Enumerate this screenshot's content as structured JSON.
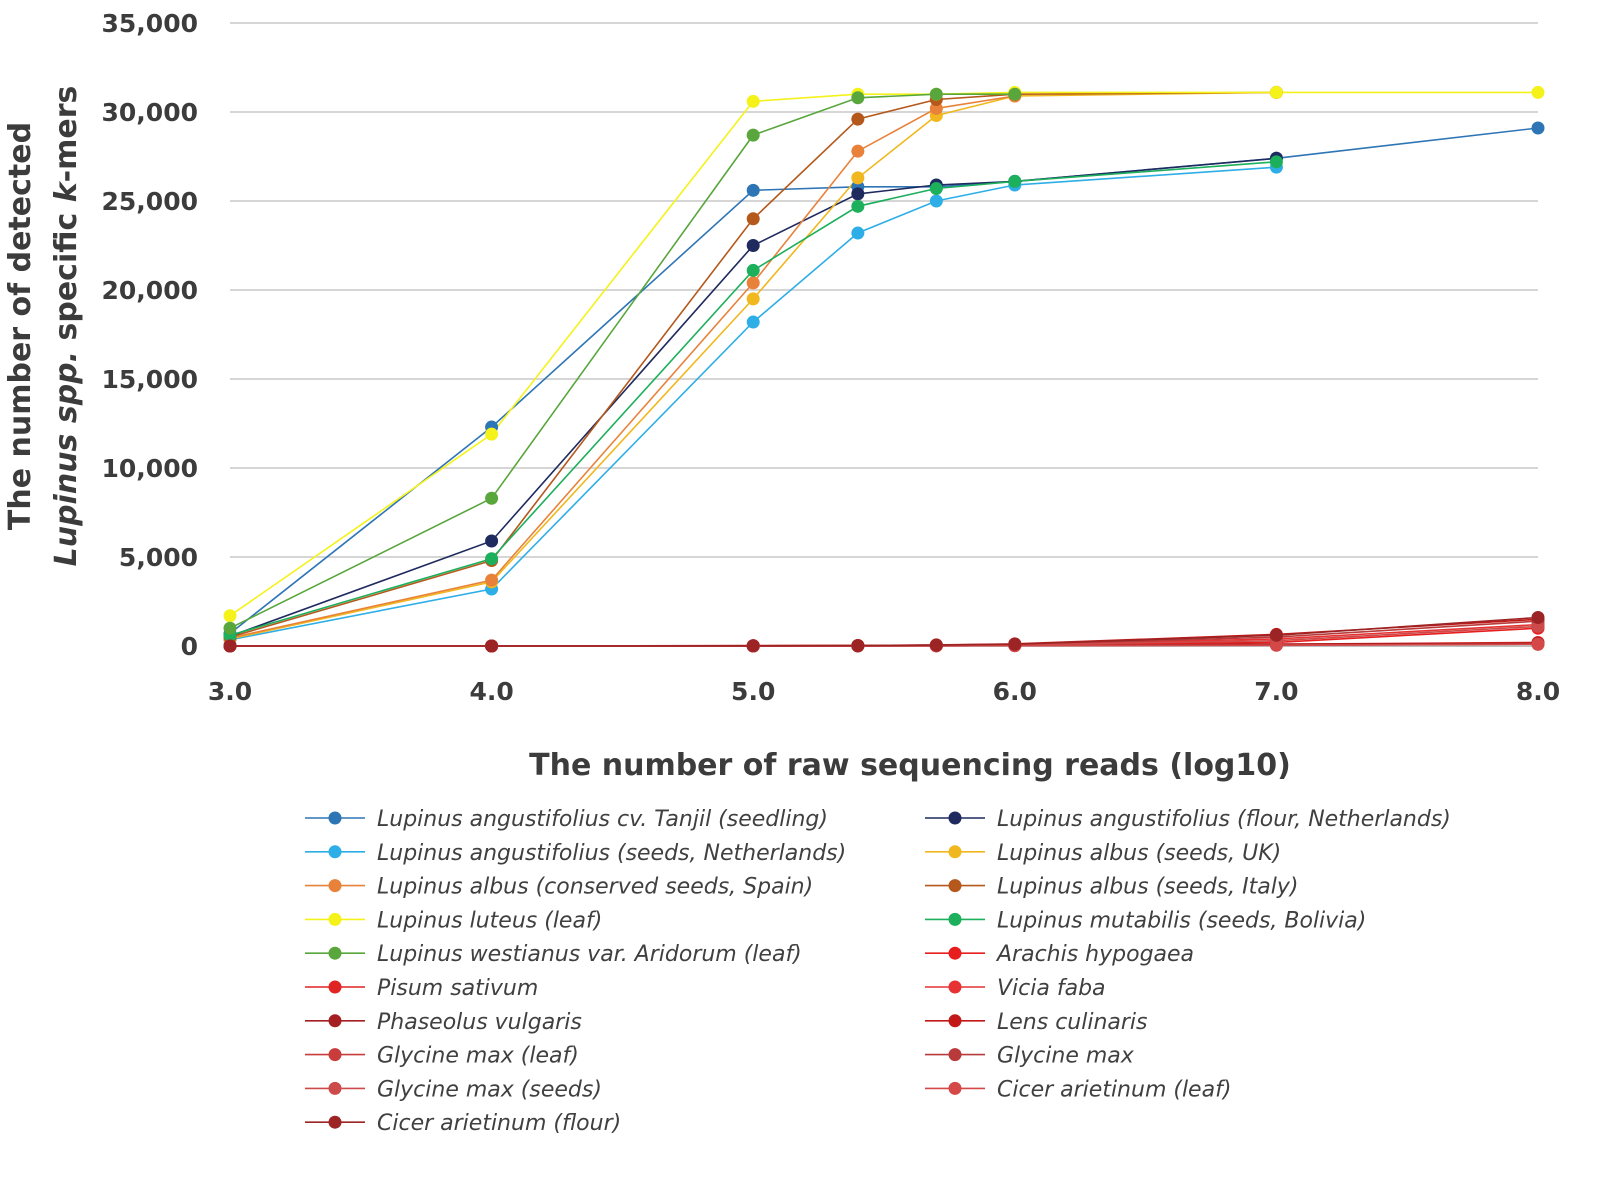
{
  "chart_data": {
    "type": "line",
    "xlabel": "The number of raw sequencing reads (log10)",
    "ylabel_line1": "The number of detected",
    "ylabel_line2_parts": [
      "Lupinus spp.",
      " specific ",
      "k",
      "-mers"
    ],
    "x_ticks": [
      "3.0",
      "4.0",
      "5.0",
      "6.0",
      "7.0",
      "8.0"
    ],
    "y_ticks": [
      "0",
      "5,000",
      "10,000",
      "15,000",
      "20,000",
      "25,000",
      "30,000",
      "35,000"
    ],
    "xlim": [
      3.0,
      8.0
    ],
    "ylim": [
      0,
      35000
    ],
    "grid": true,
    "legend_position": "bottom",
    "series": [
      {
        "name": "Lupinus angustifolius cv. Tanjil (seedling)",
        "color": "#2e75b6",
        "x": [
          3.0,
          4.0,
          5.0,
          5.4,
          5.7,
          6.0,
          7.0,
          8.0
        ],
        "values": [
          700,
          12300,
          25600,
          25800,
          25800,
          26100,
          27400,
          29100
        ]
      },
      {
        "name": "Lupinus angustifolius (flour, Netherlands)",
        "color": "#1f2a5e",
        "x": [
          3.0,
          4.0,
          5.0,
          5.4,
          5.7,
          6.0,
          7.0
        ],
        "values": [
          550,
          5900,
          22500,
          25400,
          25900,
          26100,
          27400
        ]
      },
      {
        "name": "Lupinus angustifolius (seeds, Netherlands)",
        "color": "#2eaee6",
        "x": [
          3.0,
          4.0,
          5.0,
          5.4,
          5.7,
          6.0,
          7.0
        ],
        "values": [
          350,
          3200,
          18200,
          23200,
          25000,
          25900,
          26900
        ]
      },
      {
        "name": "Lupinus albus (seeds, UK)",
        "color": "#f0b81e",
        "x": [
          3.0,
          4.0,
          5.0,
          5.4,
          5.7,
          6.0,
          7.0
        ],
        "values": [
          400,
          3600,
          19500,
          26300,
          29800,
          30900,
          31100
        ]
      },
      {
        "name": "Lupinus albus (conserved seeds, Spain)",
        "color": "#e8823a",
        "x": [
          3.0,
          4.0,
          5.0,
          5.4,
          5.7,
          6.0
        ],
        "values": [
          450,
          3700,
          20400,
          27800,
          30200,
          30900
        ]
      },
      {
        "name": "Lupinus albus (seeds, Italy)",
        "color": "#b5581b",
        "x": [
          3.0,
          4.0,
          5.0,
          5.4,
          5.7,
          6.0,
          7.0
        ],
        "values": [
          500,
          4800,
          24000,
          29600,
          30700,
          31000,
          31100
        ]
      },
      {
        "name": "Lupinus luteus (leaf)",
        "color": "#f5f21a",
        "x": [
          3.0,
          4.0,
          5.0,
          5.4,
          5.7,
          6.0,
          7.0,
          8.0
        ],
        "values": [
          1700,
          11900,
          30600,
          31000,
          31000,
          31100,
          31100,
          31100
        ]
      },
      {
        "name": "Lupinus mutabilis (seeds, Bolivia)",
        "color": "#1caf5c",
        "x": [
          3.0,
          4.0,
          5.0,
          5.4,
          5.7,
          6.0,
          7.0
        ],
        "values": [
          600,
          4900,
          21100,
          24700,
          25700,
          26100,
          27200
        ]
      },
      {
        "name": "Lupinus westianus var. Aridorum (leaf)",
        "color": "#58a63c",
        "x": [
          3.0,
          4.0,
          5.0,
          5.4,
          5.7,
          6.0
        ],
        "values": [
          1000,
          8300,
          28700,
          30800,
          31000,
          31000
        ]
      },
      {
        "name": "Arachis hypogaea",
        "color": "#e81d1d",
        "x": [
          3.0,
          4.0,
          5.0,
          5.4,
          5.7,
          6.0,
          7.0,
          8.0
        ],
        "values": [
          0,
          0,
          10,
          20,
          30,
          50,
          200,
          1000
        ]
      },
      {
        "name": "Pisum sativum",
        "color": "#e02424",
        "x": [
          3.0,
          4.0,
          5.0,
          5.4,
          5.7,
          6.0,
          7.0,
          8.0
        ],
        "values": [
          0,
          0,
          0,
          10,
          20,
          40,
          100,
          200
        ]
      },
      {
        "name": "Vicia faba",
        "color": "#e63232",
        "x": [
          3.0,
          4.0,
          5.0,
          5.4,
          5.7,
          6.0,
          7.0,
          8.0
        ],
        "values": [
          0,
          0,
          10,
          10,
          30,
          60,
          400,
          1200
        ]
      },
      {
        "name": "Phaseolus vulgaris",
        "color": "#a41e22",
        "x": [
          3.0,
          4.0,
          5.0,
          5.4,
          5.7,
          6.0,
          7.0,
          8.0
        ],
        "values": [
          0,
          0,
          0,
          0,
          10,
          20,
          100,
          150
        ]
      },
      {
        "name": "Lens culinaris",
        "color": "#c21818",
        "x": [
          3.0,
          4.0,
          5.0,
          5.4,
          5.7,
          6.0,
          7.0,
          8.0
        ],
        "values": [
          0,
          0,
          20,
          30,
          60,
          120,
          650,
          1500
        ]
      },
      {
        "name": "Glycine max (leaf)",
        "color": "#c83c3c",
        "x": [
          3.0,
          4.0,
          5.0,
          5.4,
          5.7,
          6.0,
          7.0,
          8.0
        ],
        "values": [
          0,
          0,
          0,
          10,
          10,
          20,
          50,
          100
        ]
      },
      {
        "name": "Glycine max",
        "color": "#b83a3a",
        "x": [
          3.0,
          4.0,
          5.0,
          5.4,
          5.7,
          6.0,
          7.0,
          8.0
        ],
        "values": [
          0,
          0,
          10,
          20,
          40,
          80,
          500,
          1400
        ]
      },
      {
        "name": "Glycine max (seeds)",
        "color": "#cc4a4a",
        "x": [
          3.0,
          4.0,
          5.0,
          5.4,
          5.7,
          6.0,
          7.0,
          8.0
        ],
        "values": [
          0,
          0,
          10,
          20,
          30,
          60,
          300,
          1100
        ]
      },
      {
        "name": "Cicer arietinum (leaf)",
        "color": "#d44848",
        "x": [
          3.0,
          4.0,
          5.0,
          5.4,
          5.7,
          6.0,
          7.0,
          8.0
        ],
        "values": [
          0,
          0,
          0,
          10,
          10,
          20,
          40,
          100
        ]
      },
      {
        "name": "Cicer arietinum (flour)",
        "color": "#9c2424",
        "x": [
          3.0,
          4.0,
          5.0,
          5.4,
          5.7,
          6.0,
          7.0,
          8.0
        ],
        "values": [
          0,
          0,
          10,
          20,
          50,
          100,
          600,
          1600
        ]
      }
    ]
  }
}
